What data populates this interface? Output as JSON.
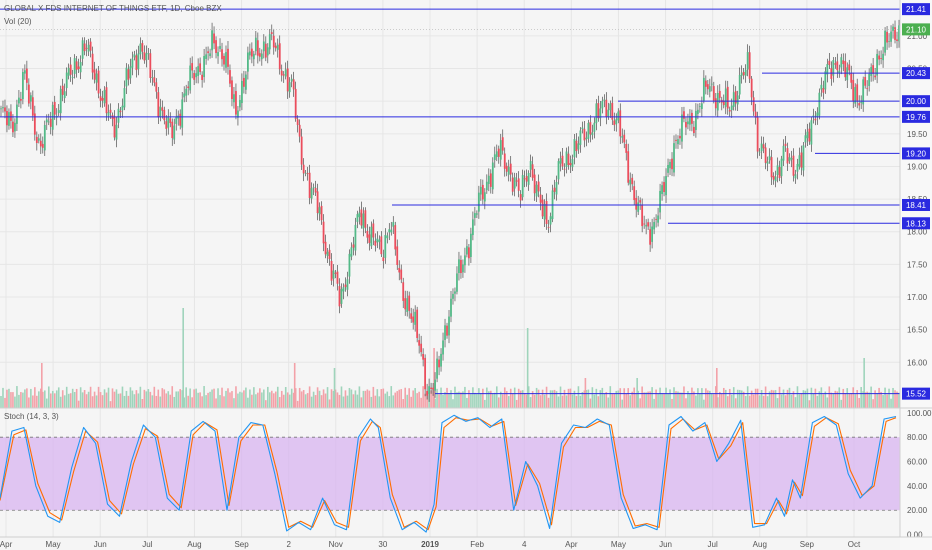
{
  "legends": {
    "main": "GLOBAL X FDS INTERNET OF THINGS ETF, 1D, Cboe BZX",
    "volume": "Vol (20)",
    "stoch": "Stoch (14, 3, 3)"
  },
  "colors": {
    "background": "#f5f5f5",
    "grid": "#e6e6e6",
    "up": "#53b987",
    "down": "#eb4d5c",
    "up_volume": "#9fd4bb",
    "down_volume": "#f3a1a8",
    "level_line": "#2a2ae0",
    "stoch_k": "#2196f3",
    "stoch_d": "#ff6d00",
    "stoch_band": "#d8b4f0",
    "last_price": "#4caf50"
  },
  "chart_data": {
    "type": "candlestick",
    "price_axis": {
      "min": 15.3,
      "max": 21.55,
      "ticks": [
        "21.00",
        "20.50",
        "20.00",
        "19.50",
        "19.00",
        "18.50",
        "18.00",
        "17.50",
        "17.00",
        "16.50",
        "16.00"
      ]
    },
    "time_axis": {
      "labels": [
        "Apr",
        "May",
        "Jun",
        "Jul",
        "Aug",
        "Sep",
        "2",
        "Nov",
        "30",
        "2019",
        "Feb",
        "4",
        "Apr",
        "May",
        "Jun",
        "Jul",
        "Aug",
        "Sep",
        "Oct"
      ]
    },
    "close_path": [
      [
        0,
        19.85
      ],
      [
        6,
        19.6
      ],
      [
        12,
        20.4
      ],
      [
        20,
        19.3
      ],
      [
        28,
        19.9
      ],
      [
        36,
        20.45
      ],
      [
        43,
        20.85
      ],
      [
        50,
        20.2
      ],
      [
        57,
        19.55
      ],
      [
        64,
        20.35
      ],
      [
        71,
        20.9
      ],
      [
        78,
        20.15
      ],
      [
        86,
        19.45
      ],
      [
        94,
        20.25
      ],
      [
        101,
        20.55
      ],
      [
        107,
        20.85
      ],
      [
        113,
        20.75
      ],
      [
        118,
        19.75
      ],
      [
        124,
        20.6
      ],
      [
        130,
        20.8
      ],
      [
        137,
        20.9
      ],
      [
        142,
        20.5
      ],
      [
        147,
        20.15
      ],
      [
        151,
        19.25
      ],
      [
        156,
        18.6
      ],
      [
        160,
        18.4
      ],
      [
        166,
        17.4
      ],
      [
        171,
        17.0
      ],
      [
        176,
        17.6
      ],
      [
        181,
        18.35
      ],
      [
        186,
        17.9
      ],
      [
        192,
        17.7
      ],
      [
        196,
        18.2
      ],
      [
        201,
        17.2
      ],
      [
        206,
        16.8
      ],
      [
        211,
        16.2
      ],
      [
        215,
        15.55
      ],
      [
        219,
        15.7
      ],
      [
        224,
        16.6
      ],
      [
        229,
        17.2
      ],
      [
        235,
        17.8
      ],
      [
        240,
        18.4
      ],
      [
        246,
        18.9
      ],
      [
        251,
        19.25
      ],
      [
        256,
        18.95
      ],
      [
        261,
        18.5
      ],
      [
        266,
        19.1
      ],
      [
        270,
        18.5
      ],
      [
        275,
        18.15
      ],
      [
        280,
        18.9
      ],
      [
        287,
        19.2
      ],
      [
        294,
        19.5
      ],
      [
        300,
        19.8
      ],
      [
        306,
        19.95
      ],
      [
        311,
        19.6
      ],
      [
        316,
        18.9
      ],
      [
        320,
        18.4
      ],
      [
        324,
        18.0
      ],
      [
        328,
        18.1
      ],
      [
        333,
        18.6
      ],
      [
        338,
        19.3
      ],
      [
        344,
        19.65
      ],
      [
        350,
        19.8
      ],
      [
        356,
        20.3
      ],
      [
        361,
        20.0
      ],
      [
        366,
        19.9
      ],
      [
        371,
        20.25
      ],
      [
        376,
        20.55
      ],
      [
        381,
        19.3
      ],
      [
        386,
        19.0
      ],
      [
        390,
        18.9
      ],
      [
        394,
        19.2
      ],
      [
        398,
        19.0
      ],
      [
        402,
        19.1
      ],
      [
        406,
        19.45
      ],
      [
        411,
        20.05
      ],
      [
        416,
        20.45
      ],
      [
        421,
        20.65
      ],
      [
        426,
        20.35
      ],
      [
        431,
        20.05
      ],
      [
        436,
        20.25
      ],
      [
        441,
        20.7
      ],
      [
        446,
        20.9
      ],
      [
        450,
        21.1
      ]
    ],
    "key_levels": [
      {
        "value": 21.41,
        "label": "21.41"
      },
      {
        "value": 21.1,
        "label": "21.10",
        "kind": "last"
      },
      {
        "value": 20.43,
        "label": "20.43"
      },
      {
        "value": 20.0,
        "label": "20.00"
      },
      {
        "value": 19.76,
        "label": "19.76"
      },
      {
        "value": 19.2,
        "label": "19.20"
      },
      {
        "value": 18.41,
        "label": "18.41"
      },
      {
        "value": 18.13,
        "label": "18.13"
      },
      {
        "value": 15.52,
        "label": "15.52"
      }
    ],
    "stoch_axis": {
      "min": -2,
      "max": 104,
      "ticks": [
        "100.00",
        "80.00",
        "60.00",
        "40.00",
        "20.00",
        "0.00"
      ],
      "band": [
        20,
        80
      ]
    },
    "stoch_k_path": [
      [
        0,
        30
      ],
      [
        6,
        85
      ],
      [
        12,
        88
      ],
      [
        18,
        40
      ],
      [
        24,
        15
      ],
      [
        30,
        10
      ],
      [
        36,
        55
      ],
      [
        42,
        88
      ],
      [
        48,
        75
      ],
      [
        54,
        25
      ],
      [
        60,
        15
      ],
      [
        66,
        60
      ],
      [
        72,
        90
      ],
      [
        78,
        80
      ],
      [
        84,
        30
      ],
      [
        90,
        20
      ],
      [
        96,
        85
      ],
      [
        102,
        93
      ],
      [
        108,
        85
      ],
      [
        114,
        20
      ],
      [
        120,
        80
      ],
      [
        126,
        92
      ],
      [
        132,
        90
      ],
      [
        138,
        50
      ],
      [
        144,
        3
      ],
      [
        150,
        10
      ],
      [
        156,
        4
      ],
      [
        162,
        30
      ],
      [
        168,
        8
      ],
      [
        174,
        4
      ],
      [
        180,
        80
      ],
      [
        186,
        95
      ],
      [
        190,
        88
      ],
      [
        196,
        30
      ],
      [
        202,
        4
      ],
      [
        208,
        10
      ],
      [
        214,
        2
      ],
      [
        218,
        25
      ],
      [
        222,
        92
      ],
      [
        228,
        98
      ],
      [
        234,
        93
      ],
      [
        240,
        96
      ],
      [
        246,
        88
      ],
      [
        252,
        95
      ],
      [
        258,
        20
      ],
      [
        264,
        60
      ],
      [
        270,
        40
      ],
      [
        276,
        5
      ],
      [
        282,
        75
      ],
      [
        288,
        90
      ],
      [
        294,
        88
      ],
      [
        300,
        95
      ],
      [
        306,
        90
      ],
      [
        312,
        30
      ],
      [
        318,
        5
      ],
      [
        324,
        8
      ],
      [
        330,
        4
      ],
      [
        336,
        90
      ],
      [
        342,
        97
      ],
      [
        348,
        85
      ],
      [
        354,
        92
      ],
      [
        360,
        60
      ],
      [
        366,
        75
      ],
      [
        372,
        94
      ],
      [
        378,
        6
      ],
      [
        384,
        8
      ],
      [
        390,
        30
      ],
      [
        394,
        15
      ],
      [
        398,
        45
      ],
      [
        402,
        30
      ],
      [
        408,
        92
      ],
      [
        414,
        97
      ],
      [
        420,
        90
      ],
      [
        426,
        50
      ],
      [
        432,
        30
      ],
      [
        438,
        40
      ],
      [
        444,
        95
      ],
      [
        450,
        97
      ]
    ],
    "stoch_d_path": [
      [
        0,
        28
      ],
      [
        7,
        82
      ],
      [
        13,
        86
      ],
      [
        19,
        42
      ],
      [
        25,
        18
      ],
      [
        31,
        12
      ],
      [
        37,
        52
      ],
      [
        43,
        85
      ],
      [
        49,
        76
      ],
      [
        55,
        28
      ],
      [
        61,
        17
      ],
      [
        67,
        58
      ],
      [
        73,
        87
      ],
      [
        79,
        81
      ],
      [
        85,
        33
      ],
      [
        91,
        22
      ],
      [
        97,
        82
      ],
      [
        103,
        92
      ],
      [
        109,
        86
      ],
      [
        115,
        24
      ],
      [
        121,
        77
      ],
      [
        127,
        90
      ],
      [
        133,
        90
      ],
      [
        139,
        52
      ],
      [
        145,
        6
      ],
      [
        151,
        11
      ],
      [
        157,
        6
      ],
      [
        163,
        28
      ],
      [
        169,
        10
      ],
      [
        175,
        6
      ],
      [
        181,
        77
      ],
      [
        187,
        93
      ],
      [
        191,
        88
      ],
      [
        197,
        33
      ],
      [
        203,
        6
      ],
      [
        209,
        11
      ],
      [
        215,
        4
      ],
      [
        219,
        23
      ],
      [
        223,
        88
      ],
      [
        229,
        96
      ],
      [
        235,
        94
      ],
      [
        241,
        95
      ],
      [
        247,
        89
      ],
      [
        253,
        93
      ],
      [
        259,
        24
      ],
      [
        265,
        58
      ],
      [
        271,
        42
      ],
      [
        277,
        8
      ],
      [
        283,
        72
      ],
      [
        289,
        88
      ],
      [
        295,
        88
      ],
      [
        301,
        93
      ],
      [
        307,
        90
      ],
      [
        313,
        33
      ],
      [
        319,
        7
      ],
      [
        325,
        9
      ],
      [
        331,
        6
      ],
      [
        337,
        87
      ],
      [
        343,
        95
      ],
      [
        349,
        86
      ],
      [
        355,
        90
      ],
      [
        361,
        62
      ],
      [
        367,
        73
      ],
      [
        373,
        92
      ],
      [
        379,
        9
      ],
      [
        385,
        9
      ],
      [
        391,
        28
      ],
      [
        395,
        17
      ],
      [
        399,
        43
      ],
      [
        403,
        32
      ],
      [
        409,
        89
      ],
      [
        415,
        96
      ],
      [
        421,
        91
      ],
      [
        427,
        53
      ],
      [
        433,
        32
      ],
      [
        439,
        40
      ],
      [
        445,
        93
      ],
      [
        450,
        96
      ]
    ]
  }
}
